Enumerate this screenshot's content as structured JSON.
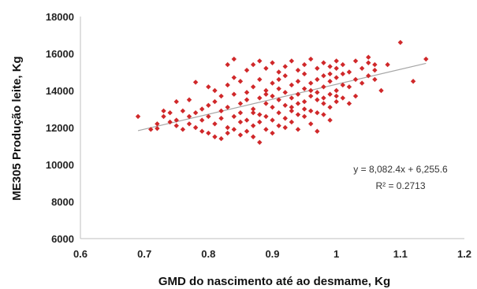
{
  "chart_data": {
    "type": "scatter",
    "title": "",
    "xlabel": "GMD do nascimento até ao desmame, Kg",
    "ylabel": "ME305 Produção leite, Kg",
    "xlim": [
      0.6,
      1.2
    ],
    "ylim": [
      6000,
      18000
    ],
    "x_ticks": [
      "0.6",
      "0.7",
      "0.8",
      "0.9",
      "1",
      "1.1",
      "1.2"
    ],
    "y_ticks": [
      "6000",
      "8000",
      "10000",
      "12000",
      "14000",
      "16000",
      "18000"
    ],
    "grid": false,
    "marker_color": "#d0282a",
    "trendline_color": "#a6a6a6",
    "trendline": {
      "slope": 8082.4,
      "intercept": 6255.6,
      "x_range": [
        0.69,
        1.14
      ]
    },
    "equation": "y = 8,082.4x + 6,255.6",
    "r_squared": "R² = 0.2713",
    "points": [
      [
        0.69,
        12600
      ],
      [
        0.71,
        11900
      ],
      [
        0.72,
        12200
      ],
      [
        0.72,
        11950
      ],
      [
        0.73,
        12900
      ],
      [
        0.73,
        12600
      ],
      [
        0.74,
        12300
      ],
      [
        0.74,
        12800
      ],
      [
        0.75,
        13400
      ],
      [
        0.75,
        12400
      ],
      [
        0.75,
        12100
      ],
      [
        0.76,
        12900
      ],
      [
        0.76,
        11900
      ],
      [
        0.77,
        12600
      ],
      [
        0.77,
        12200
      ],
      [
        0.77,
        13500
      ],
      [
        0.78,
        12000
      ],
      [
        0.78,
        14450
      ],
      [
        0.78,
        12800
      ],
      [
        0.79,
        11800
      ],
      [
        0.79,
        13000
      ],
      [
        0.79,
        12400
      ],
      [
        0.8,
        14200
      ],
      [
        0.8,
        13200
      ],
      [
        0.8,
        12600
      ],
      [
        0.8,
        11700
      ],
      [
        0.81,
        13400
      ],
      [
        0.81,
        12200
      ],
      [
        0.81,
        14000
      ],
      [
        0.81,
        11500
      ],
      [
        0.82,
        12900
      ],
      [
        0.82,
        13700
      ],
      [
        0.82,
        11400
      ],
      [
        0.82,
        12500
      ],
      [
        0.83,
        15400
      ],
      [
        0.83,
        13100
      ],
      [
        0.83,
        14300
      ],
      [
        0.83,
        12000
      ],
      [
        0.83,
        11700
      ],
      [
        0.84,
        15700
      ],
      [
        0.84,
        12600
      ],
      [
        0.84,
        13800
      ],
      [
        0.84,
        14700
      ],
      [
        0.84,
        11900
      ],
      [
        0.85,
        13300
      ],
      [
        0.85,
        12300
      ],
      [
        0.85,
        14500
      ],
      [
        0.85,
        11600
      ],
      [
        0.85,
        12800
      ],
      [
        0.86,
        15100
      ],
      [
        0.86,
        13900
      ],
      [
        0.86,
        12400
      ],
      [
        0.86,
        13500
      ],
      [
        0.86,
        11800
      ],
      [
        0.87,
        15400
      ],
      [
        0.87,
        14200
      ],
      [
        0.87,
        12800
      ],
      [
        0.87,
        13000
      ],
      [
        0.87,
        12100
      ],
      [
        0.87,
        11500
      ],
      [
        0.88,
        15600
      ],
      [
        0.88,
        14600
      ],
      [
        0.88,
        13600
      ],
      [
        0.88,
        12700
      ],
      [
        0.88,
        11200
      ],
      [
        0.88,
        12300
      ],
      [
        0.89,
        15200
      ],
      [
        0.89,
        14000
      ],
      [
        0.89,
        13300
      ],
      [
        0.89,
        12600
      ],
      [
        0.89,
        11900
      ],
      [
        0.89,
        13800
      ],
      [
        0.9,
        15500
      ],
      [
        0.9,
        14400
      ],
      [
        0.9,
        13100
      ],
      [
        0.9,
        12400
      ],
      [
        0.9,
        13700
      ],
      [
        0.9,
        11700
      ],
      [
        0.91,
        15000
      ],
      [
        0.91,
        14100
      ],
      [
        0.91,
        13500
      ],
      [
        0.91,
        12800
      ],
      [
        0.91,
        12100
      ],
      [
        0.91,
        14600
      ],
      [
        0.92,
        15300
      ],
      [
        0.92,
        14800
      ],
      [
        0.92,
        13900
      ],
      [
        0.92,
        13200
      ],
      [
        0.92,
        12500
      ],
      [
        0.92,
        12000
      ],
      [
        0.93,
        15600
      ],
      [
        0.93,
        14300
      ],
      [
        0.93,
        13600
      ],
      [
        0.93,
        12900
      ],
      [
        0.93,
        12300
      ],
      [
        0.93,
        13100
      ],
      [
        0.94,
        15100
      ],
      [
        0.94,
        14500
      ],
      [
        0.94,
        13800
      ],
      [
        0.94,
        13300
      ],
      [
        0.94,
        12700
      ],
      [
        0.94,
        11900
      ],
      [
        0.95,
        15400
      ],
      [
        0.95,
        14900
      ],
      [
        0.95,
        14100
      ],
      [
        0.95,
        13400
      ],
      [
        0.95,
        12600
      ],
      [
        0.95,
        13000
      ],
      [
        0.96,
        15700
      ],
      [
        0.96,
        14400
      ],
      [
        0.96,
        13700
      ],
      [
        0.96,
        12900
      ],
      [
        0.96,
        12200
      ],
      [
        0.96,
        14000
      ],
      [
        0.97,
        15200
      ],
      [
        0.97,
        14600
      ],
      [
        0.97,
        13500
      ],
      [
        0.97,
        12800
      ],
      [
        0.97,
        13900
      ],
      [
        0.97,
        11800
      ],
      [
        0.98,
        15500
      ],
      [
        0.98,
        14800
      ],
      [
        0.98,
        14200
      ],
      [
        0.98,
        13300
      ],
      [
        0.98,
        12700
      ],
      [
        0.98,
        13600
      ],
      [
        0.99,
        15300
      ],
      [
        0.99,
        14500
      ],
      [
        0.99,
        13800
      ],
      [
        0.99,
        13100
      ],
      [
        0.99,
        14900
      ],
      [
        0.99,
        12400
      ],
      [
        1.0,
        15600
      ],
      [
        1.0,
        14700
      ],
      [
        1.0,
        14000
      ],
      [
        1.0,
        13400
      ],
      [
        1.0,
        15200
      ],
      [
        1.0,
        13700
      ],
      [
        1.01,
        14900
      ],
      [
        1.01,
        14300
      ],
      [
        1.01,
        13600
      ],
      [
        1.01,
        15400
      ],
      [
        1.02,
        15000
      ],
      [
        1.02,
        14200
      ],
      [
        1.02,
        13300
      ],
      [
        1.03,
        15600
      ],
      [
        1.03,
        14600
      ],
      [
        1.03,
        13700
      ],
      [
        1.04,
        15200
      ],
      [
        1.04,
        14400
      ],
      [
        1.05,
        15500
      ],
      [
        1.05,
        14800
      ],
      [
        1.05,
        15800
      ],
      [
        1.06,
        15100
      ],
      [
        1.06,
        14600
      ],
      [
        1.06,
        15400
      ],
      [
        1.07,
        14000
      ],
      [
        1.08,
        15400
      ],
      [
        1.1,
        16600
      ],
      [
        1.12,
        14500
      ],
      [
        1.14,
        15700
      ]
    ]
  }
}
